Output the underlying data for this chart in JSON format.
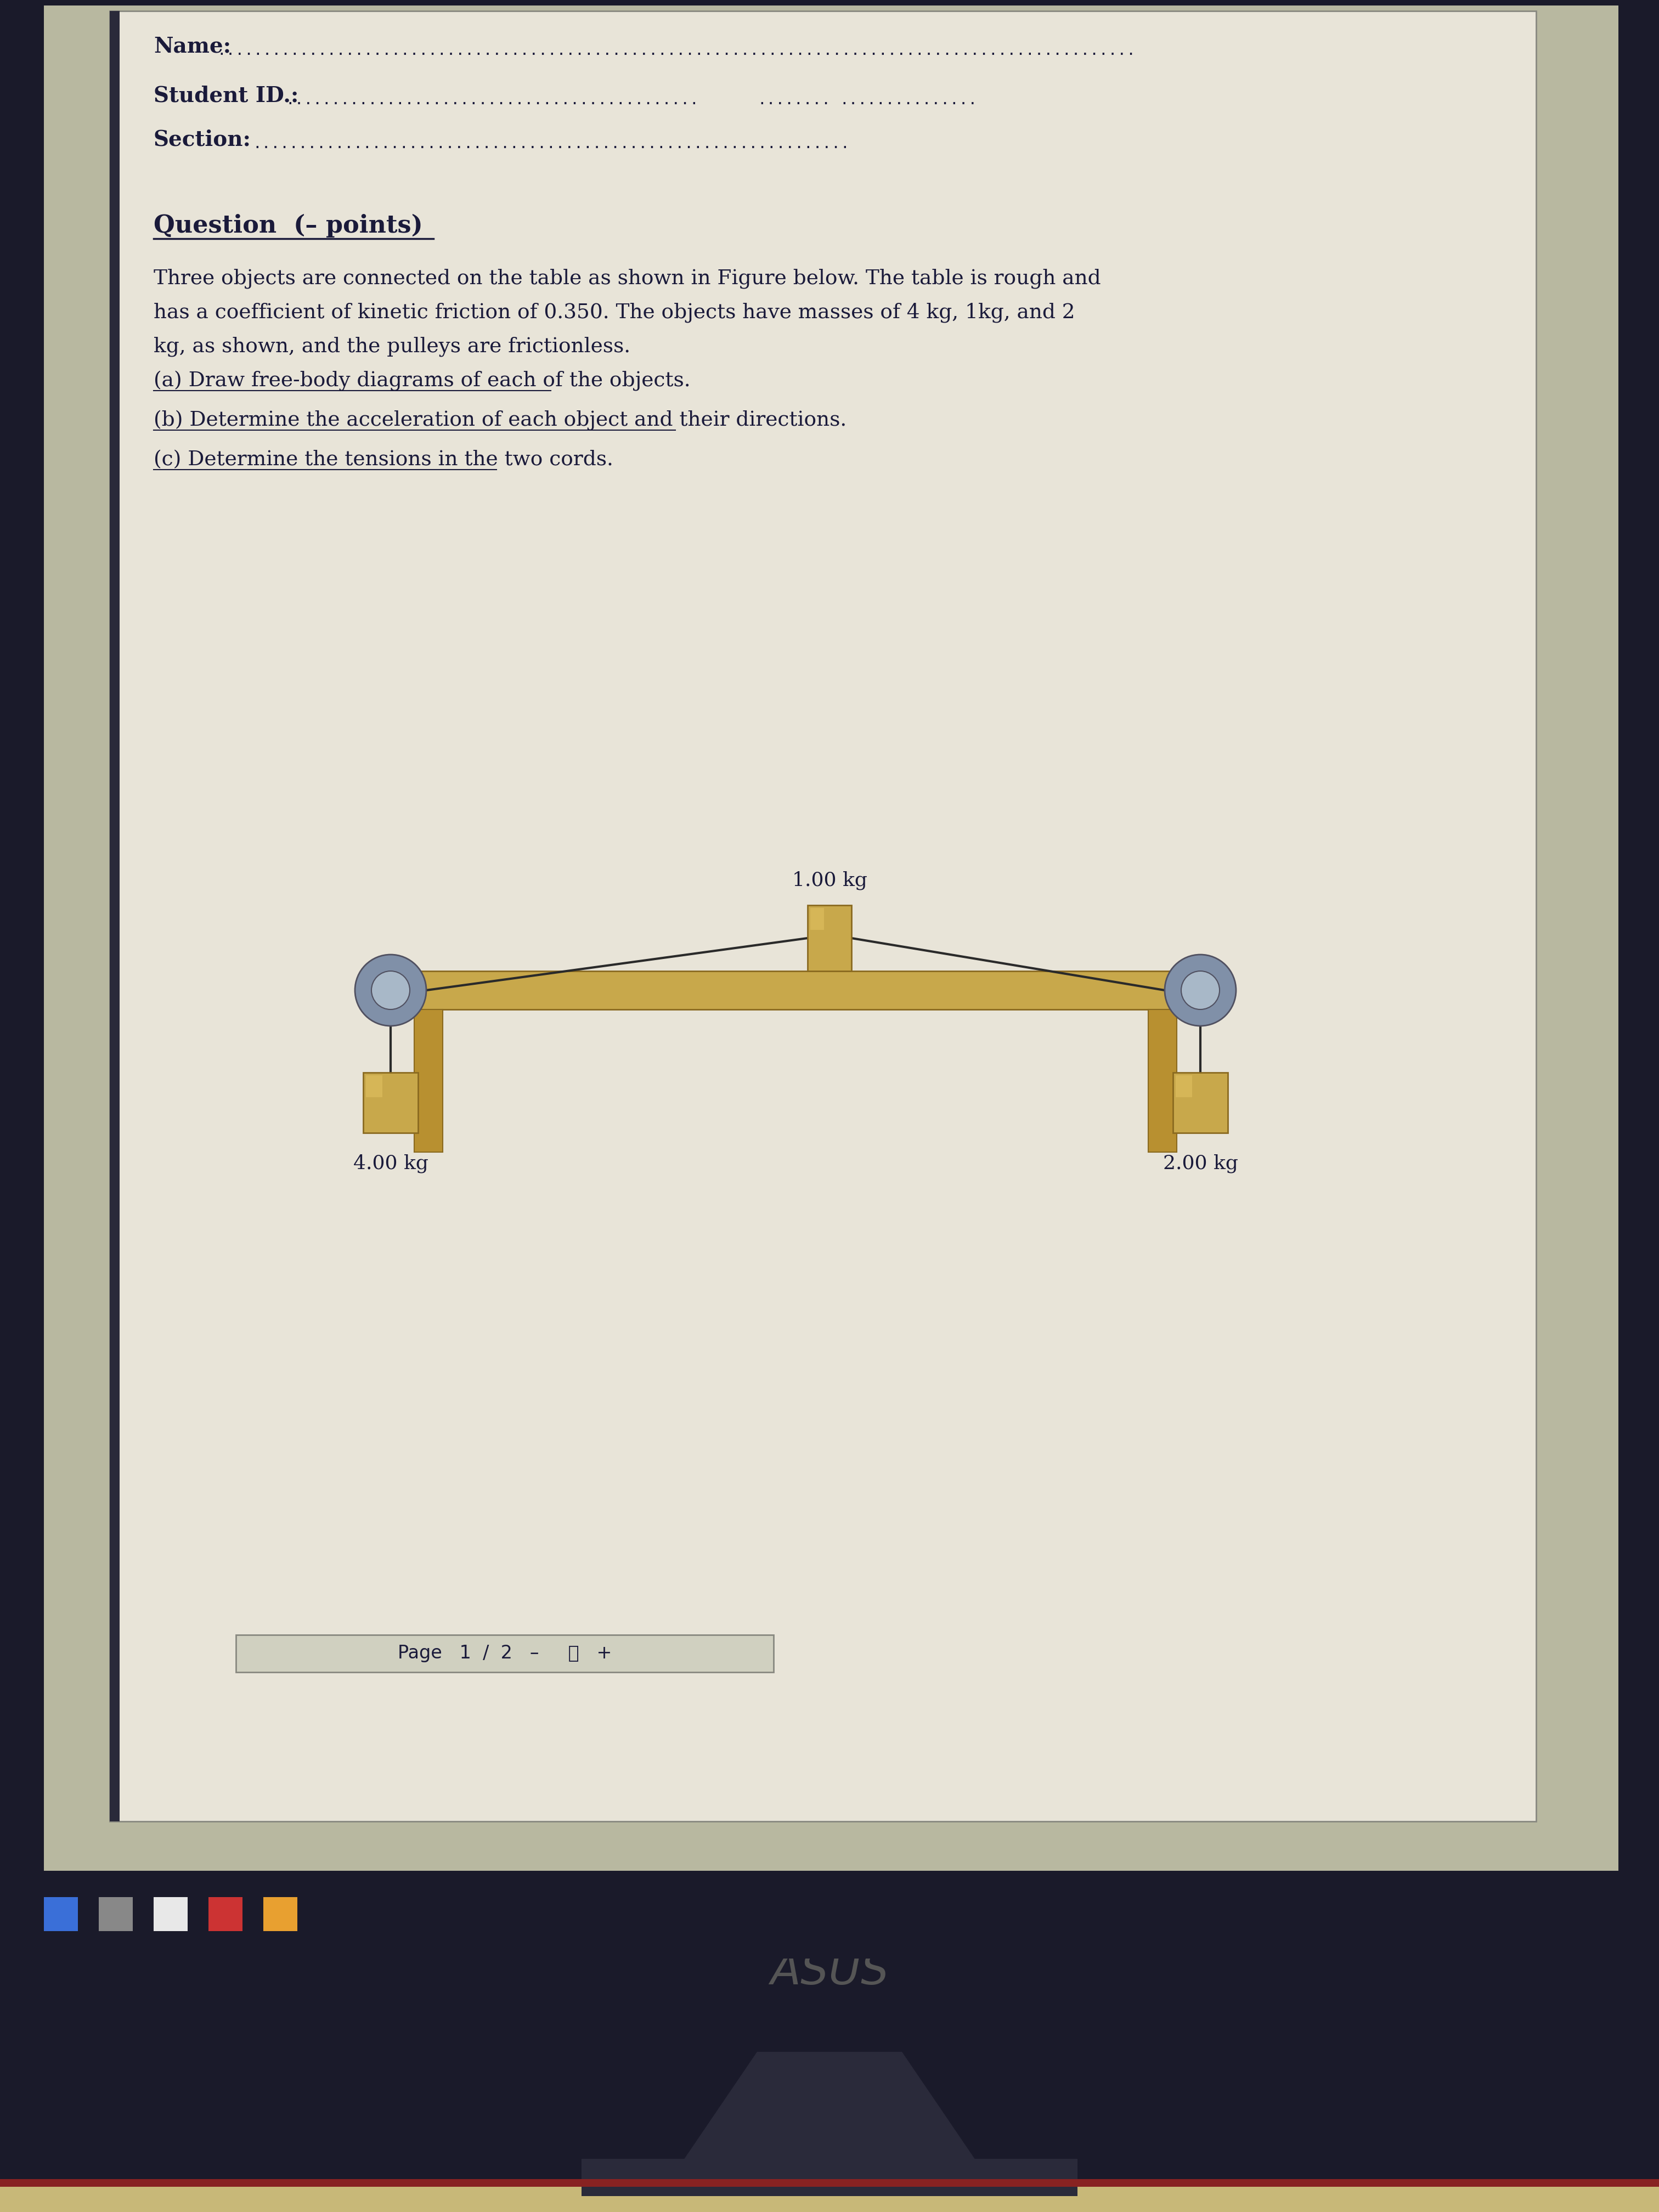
{
  "background_color": "#1a1a2a",
  "page_bg": "#e8e4d8",
  "page_text_color": "#1a1a3a",
  "question_title": "Question  (– points)",
  "question_text_lines": [
    "Three objects are connected on the table as shown in Figure below. The table is rough and",
    "has a coefficient of kinetic friction of 0.350. The objects have masses of 4 kg, 1kg, and 2",
    "kg, as shown, and the pulleys are frictionless.",
    "(a) Draw free-body diagrams of each of the objects.",
    "(b) Determine the acceleration of each object and their directions.",
    "(c) Determine the tensions in the two cords."
  ],
  "label_1kg": "1.00 kg",
  "label_4kg": "4.00 kg",
  "label_2kg": "2.00 kg",
  "page_label": "Page   1  /  2",
  "table_face_color": "#c8a84b",
  "table_edge_color": "#8a6a20",
  "block_face_color": "#c8a84b",
  "block_edge_color": "#8a6a20",
  "block_highlight_color": "#e0c060",
  "pulley_face_color": "#8090a8",
  "pulley_edge_color": "#505060",
  "pulley_inner_color": "#a8b8c8",
  "cord_color": "#2a2a2a",
  "monitor_bg": "#1a1a2a",
  "taskbar_color": "#1a1a2a",
  "screen_bg": "#b8b8a0",
  "page_border_color": "#888880",
  "left_border_color": "#2a2a3a",
  "leg_face_color": "#b89030",
  "leg_edge_color": "#8a6a20",
  "pagebar_face": "#d0d0c0",
  "pagebar_edge": "#888880",
  "desk_color": "#c8b878",
  "red_strip_color": "#882222",
  "stand_color": "#2a2a3a",
  "asus_color": "#555555",
  "taskbar_icon_colors": [
    "#3a6fd8",
    "#888888",
    "#e8e8e8",
    "#cc3333",
    "#e8a030"
  ]
}
